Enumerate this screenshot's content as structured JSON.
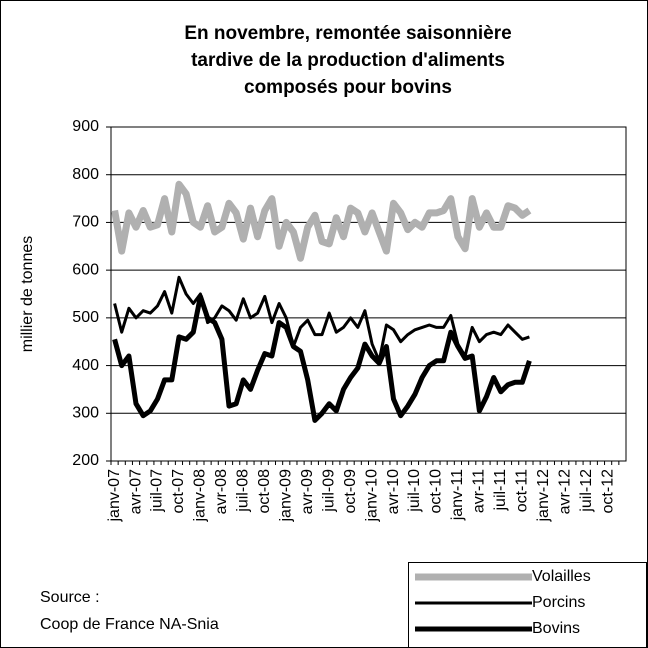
{
  "chart_data": {
    "type": "line",
    "title": "En novembre, remontée saisonnière tardive de la production d'aliments composés pour bovins",
    "ylabel": "millier de tonnes",
    "source": "Source :",
    "source2": "Coop de France NA-Snia",
    "categories": [
      "janv-07",
      null,
      null,
      "avr-07",
      null,
      null,
      "juil-07",
      null,
      null,
      "oct-07",
      null,
      null,
      "janv-08",
      null,
      null,
      "avr-08",
      null,
      null,
      "juil-08",
      null,
      null,
      "oct-08",
      null,
      null,
      "janv-09",
      null,
      null,
      "avr-09",
      null,
      null,
      "juil-09",
      null,
      null,
      "oct-09",
      null,
      null,
      "janv-10",
      null,
      null,
      "avr-10",
      null,
      null,
      "juil-10",
      null,
      null,
      "oct-10",
      null,
      null,
      "janv-11",
      null,
      null,
      "avr-11",
      null,
      null,
      "juil-11",
      null,
      null,
      "oct-11",
      null,
      null,
      "janv-12",
      null,
      null,
      "avr-12",
      null,
      null,
      "juil-12",
      null,
      null,
      "oct-12",
      null,
      null
    ],
    "ylim": [
      200,
      900
    ],
    "yticks": [
      200,
      300,
      400,
      500,
      600,
      700,
      800,
      900
    ],
    "grid": true,
    "series": [
      {
        "name": "Volailles",
        "color": "#b0b0b0",
        "values": [
          725,
          640,
          720,
          690,
          725,
          690,
          695,
          750,
          680,
          780,
          760,
          700,
          690,
          735,
          680,
          690,
          740,
          720,
          665,
          730,
          670,
          725,
          750,
          650,
          700,
          680,
          625,
          690,
          715,
          660,
          655,
          710,
          670,
          730,
          720,
          680,
          720,
          680,
          640,
          740,
          720,
          685,
          700,
          690,
          720,
          720,
          725,
          750,
          670,
          645,
          750,
          690,
          720,
          690,
          690,
          735,
          730,
          715,
          725,
          null,
          null,
          null,
          null,
          null,
          null,
          null,
          null,
          null,
          null,
          null,
          null,
          null
        ]
      },
      {
        "name": "Porcins",
        "color": "#000000",
        "values": [
          530,
          470,
          520,
          500,
          515,
          510,
          525,
          555,
          510,
          585,
          550,
          530,
          550,
          490,
          500,
          525,
          515,
          495,
          540,
          500,
          510,
          545,
          490,
          530,
          500,
          440,
          480,
          495,
          465,
          465,
          510,
          470,
          480,
          500,
          480,
          515,
          445,
          410,
          485,
          475,
          450,
          465,
          475,
          480,
          485,
          480,
          480,
          505,
          445,
          420,
          480,
          450,
          465,
          470,
          465,
          485,
          470,
          455,
          460,
          null,
          null,
          null,
          null,
          null,
          null,
          null,
          null,
          null,
          null,
          null,
          null,
          null
        ]
      },
      {
        "name": "Bovins",
        "color": "#000000",
        "values": [
          455,
          400,
          420,
          320,
          295,
          305,
          330,
          370,
          370,
          460,
          455,
          470,
          545,
          500,
          490,
          455,
          315,
          320,
          370,
          350,
          390,
          425,
          420,
          490,
          480,
          440,
          430,
          370,
          285,
          300,
          320,
          305,
          350,
          375,
          395,
          445,
          420,
          405,
          440,
          330,
          295,
          315,
          340,
          375,
          400,
          410,
          410,
          470,
          440,
          415,
          420,
          305,
          335,
          375,
          345,
          360,
          365,
          365,
          410,
          null,
          null,
          null,
          null,
          null,
          null,
          null,
          null,
          null,
          null,
          null,
          null,
          null
        ]
      }
    ]
  }
}
